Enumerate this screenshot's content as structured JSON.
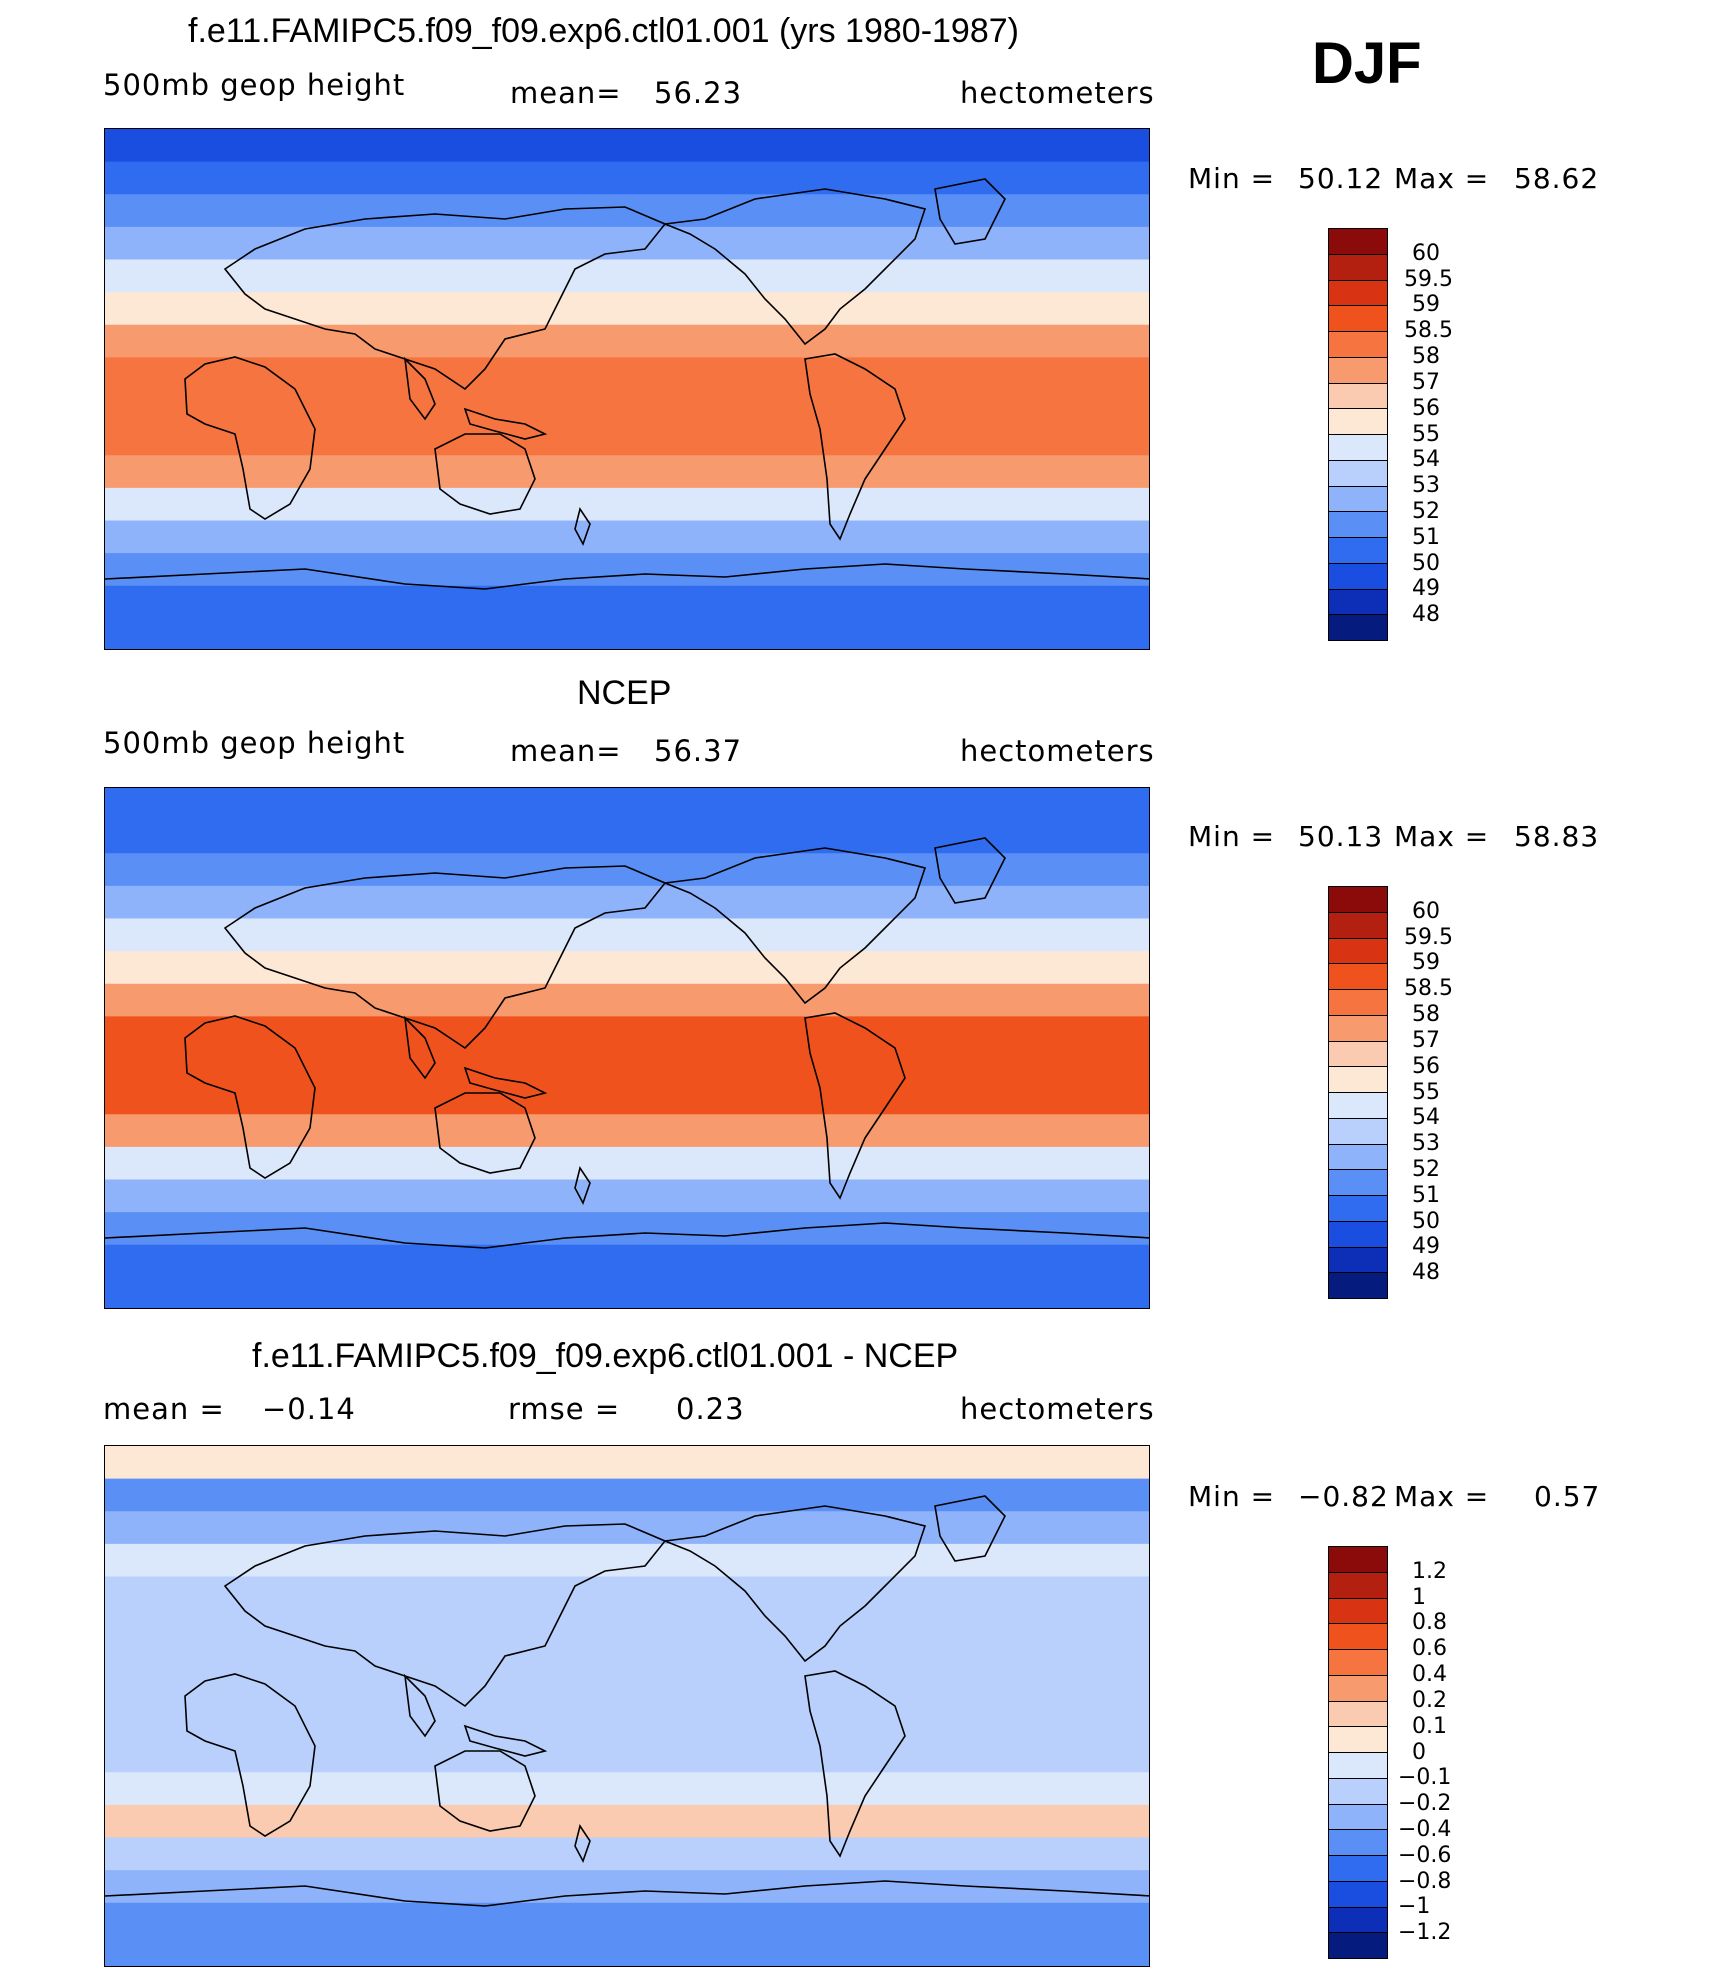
{
  "season": "DJF",
  "units": "hectometers",
  "panels": [
    {
      "title": "f.e11.FAMIPC5.f09_f09.exp6.ctl01.001 (yrs 1980-1987)",
      "variable": "500mb geop height",
      "mean_label": "mean=",
      "mean_value": "56.23",
      "units": "hectometers",
      "min_label": "Min =",
      "min_value": "50.12",
      "max_label": "Max =",
      "max_value": "58.62",
      "colorbar": {
        "labels": [
          "60",
          "59.5",
          "59",
          "58.5",
          "58",
          "57",
          "56",
          "55",
          "54",
          "53",
          "52",
          "51",
          "50",
          "49",
          "48"
        ],
        "colors": [
          "#8b0a0a",
          "#b3200f",
          "#d83312",
          "#f0521e",
          "#f57440",
          "#f79a6e",
          "#facbb0",
          "#fde8d6",
          "#dbe8fb",
          "#b8d0fb",
          "#8fb3fb",
          "#5a8ff5",
          "#2f6cf0",
          "#1a4ee0",
          "#0d2fb8",
          "#061b7e"
        ]
      },
      "map_bands": [
        "#1a4ee0",
        "#2f6cf0",
        "#5a8ff5",
        "#8fb3fb",
        "#dbe8fb",
        "#fde8d6",
        "#f79a6e",
        "#f57440",
        "#f57440",
        "#f57440",
        "#f79a6e",
        "#dbe8fb",
        "#8fb3fb",
        "#5a8ff5",
        "#2f6cf0",
        "#2f6cf0"
      ]
    },
    {
      "title": "NCEP",
      "variable": "500mb geop height",
      "mean_label": "mean=",
      "mean_value": "56.37",
      "units": "hectometers",
      "min_label": "Min =",
      "min_value": "50.13",
      "max_label": "Max =",
      "max_value": "58.83",
      "colorbar": {
        "labels": [
          "60",
          "59.5",
          "59",
          "58.5",
          "58",
          "57",
          "56",
          "55",
          "54",
          "53",
          "52",
          "51",
          "50",
          "49",
          "48"
        ],
        "colors": [
          "#8b0a0a",
          "#b3200f",
          "#d83312",
          "#f0521e",
          "#f57440",
          "#f79a6e",
          "#facbb0",
          "#fde8d6",
          "#dbe8fb",
          "#b8d0fb",
          "#8fb3fb",
          "#5a8ff5",
          "#2f6cf0",
          "#1a4ee0",
          "#0d2fb8",
          "#061b7e"
        ]
      },
      "map_bands": [
        "#2f6cf0",
        "#2f6cf0",
        "#5a8ff5",
        "#8fb3fb",
        "#dbe8fb",
        "#fde8d6",
        "#f79a6e",
        "#f0521e",
        "#f0521e",
        "#f0521e",
        "#f79a6e",
        "#dbe8fb",
        "#8fb3fb",
        "#5a8ff5",
        "#2f6cf0",
        "#2f6cf0"
      ]
    },
    {
      "title": "f.e11.FAMIPC5.f09_f09.exp6.ctl01.001 - NCEP",
      "mean_label": "mean =",
      "mean_value": "−0.14",
      "rmse_label": "rmse =",
      "rmse_value": "0.23",
      "units": "hectometers",
      "min_label": "Min =",
      "min_value": "−0.82",
      "max_label": "Max =",
      "max_value": "0.57",
      "colorbar": {
        "labels": [
          "1.2",
          "1",
          "0.8",
          "0.6",
          "0.4",
          "0.2",
          "0.1",
          "0",
          "−0.1",
          "−0.2",
          "−0.4",
          "−0.6",
          "−0.8",
          "−1",
          "−1.2"
        ],
        "colors": [
          "#8b0a0a",
          "#b3200f",
          "#d83312",
          "#f0521e",
          "#f57440",
          "#f79a6e",
          "#facbb0",
          "#fde8d6",
          "#dbe8fb",
          "#b8d0fb",
          "#8fb3fb",
          "#5a8ff5",
          "#2f6cf0",
          "#1a4ee0",
          "#0d2fb8",
          "#061b7e"
        ]
      },
      "map_bands": [
        "#fde8d6",
        "#5a8ff5",
        "#8fb3fb",
        "#dbe8fb",
        "#b8d0fb",
        "#b8d0fb",
        "#b8d0fb",
        "#b8d0fb",
        "#b8d0fb",
        "#b8d0fb",
        "#dbe8fb",
        "#facbb0",
        "#b8d0fb",
        "#8fb3fb",
        "#5a8ff5",
        "#5a8ff5"
      ]
    }
  ]
}
